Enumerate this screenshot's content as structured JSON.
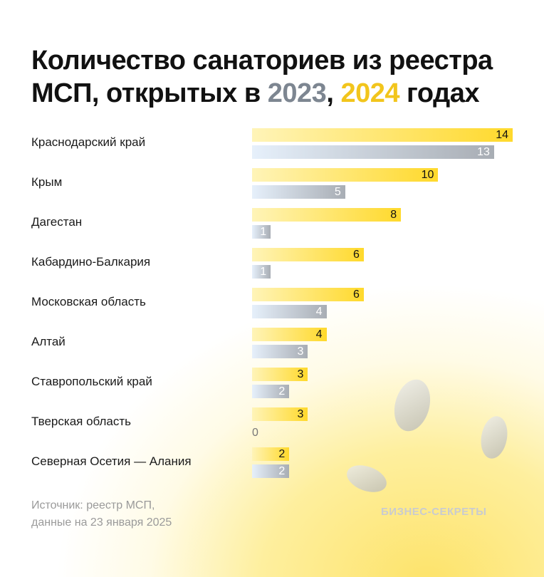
{
  "title": {
    "line1": "Количество санаториев из реестра",
    "line2_prefix": "МСП, открытых в ",
    "year1": "2023",
    "sep": ", ",
    "year2": "2024",
    "suffix": " годах"
  },
  "chart_data": {
    "type": "bar",
    "orientation": "horizontal",
    "categories": [
      "Краснодарский край",
      "Крым",
      "Дагестан",
      "Кабардино-Балкария",
      "Московская область",
      "Алтай",
      "Ставропольский край",
      "Тверская область",
      "Северная Осетия — Алания"
    ],
    "series": [
      {
        "name": "2024",
        "color": "#ffd92c",
        "values": [
          14,
          10,
          8,
          6,
          6,
          4,
          3,
          3,
          2
        ]
      },
      {
        "name": "2023",
        "color": "#a8adb4",
        "values": [
          13,
          5,
          1,
          1,
          4,
          3,
          2,
          0,
          2
        ]
      }
    ],
    "xlim": [
      0,
      14
    ],
    "grid": false,
    "legend": "in title"
  },
  "source": {
    "line1": "Источник: реестр МСП,",
    "line2": "данные на 23 января 2025"
  },
  "brand": "БИЗНЕС-СЕКРЕТЫ"
}
